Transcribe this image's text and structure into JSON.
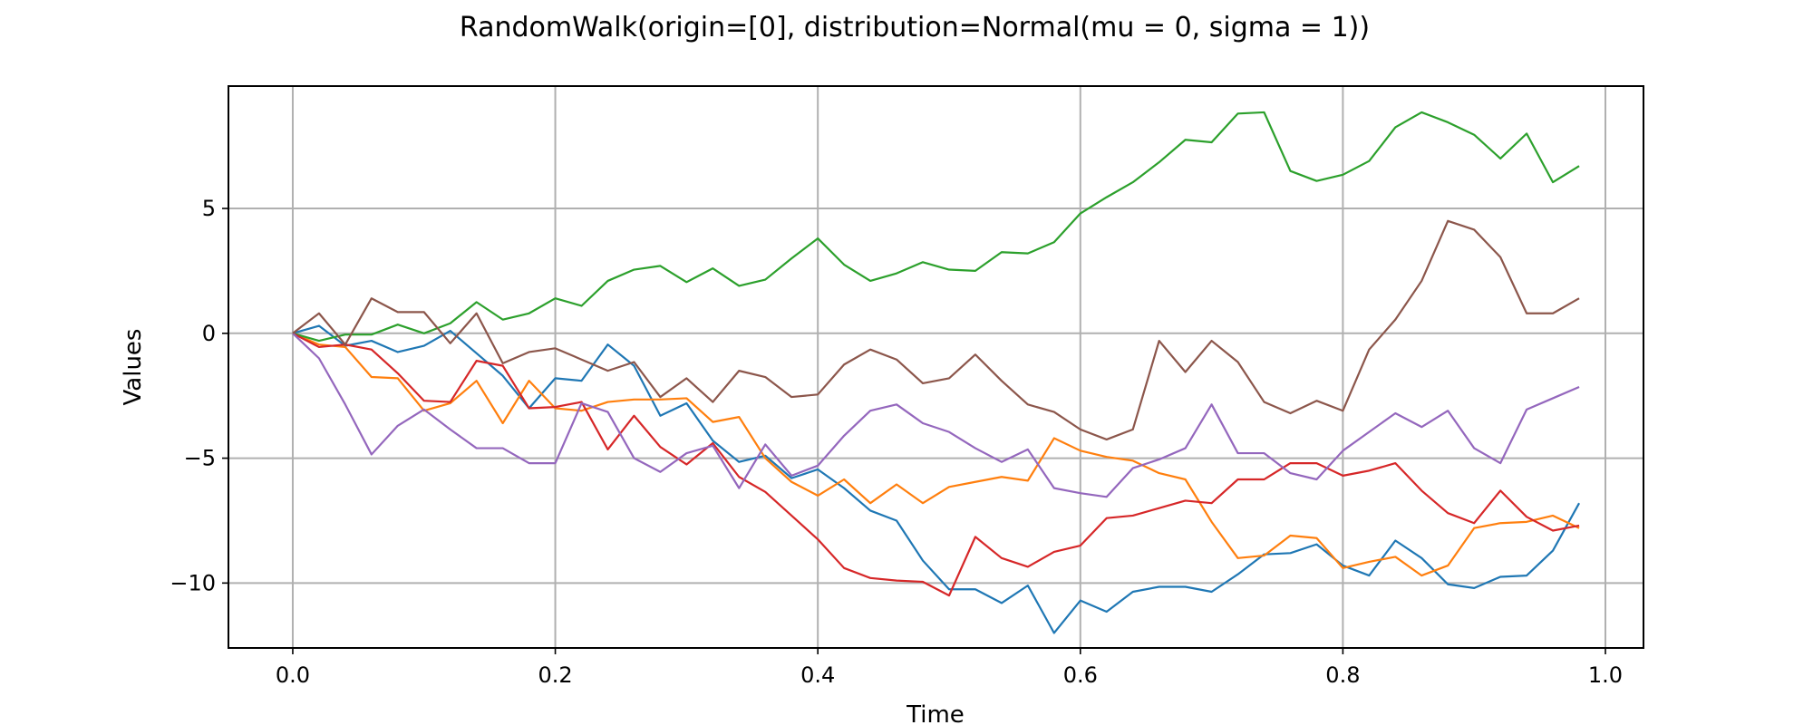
{
  "chart_data": {
    "type": "line",
    "title": "RandomWalk(origin=[0], distribution=Normal(mu = 0, sigma = 1))",
    "xlabel": "Time",
    "ylabel": "Values",
    "xlim": [
      -0.049,
      1.029
    ],
    "ylim": [
      -12.6,
      9.9
    ],
    "xticks": [
      0.0,
      0.2,
      0.4,
      0.6,
      0.8,
      1.0
    ],
    "xtick_labels": [
      "0.0",
      "0.2",
      "0.4",
      "0.6",
      "0.8",
      "1.0"
    ],
    "yticks": [
      -10,
      -5,
      0,
      5
    ],
    "ytick_labels": [
      "−10",
      "−5",
      "0",
      "5"
    ],
    "grid": true,
    "x": [
      0.0,
      0.02,
      0.04,
      0.06,
      0.08,
      0.1,
      0.12,
      0.14,
      0.16,
      0.18,
      0.2,
      0.22,
      0.24,
      0.26,
      0.28,
      0.3,
      0.32,
      0.34,
      0.36,
      0.38,
      0.4,
      0.42,
      0.44,
      0.46,
      0.48,
      0.5,
      0.52,
      0.54,
      0.56,
      0.58,
      0.6,
      0.62,
      0.64,
      0.66,
      0.68,
      0.7,
      0.72,
      0.74,
      0.76,
      0.78,
      0.8,
      0.82,
      0.84,
      0.86,
      0.88,
      0.9,
      0.92,
      0.94,
      0.96,
      0.98
    ],
    "series": [
      {
        "color": "#1f77b4",
        "values": [
          0,
          0.3,
          -0.5,
          -0.3,
          -0.75,
          -0.5,
          0.1,
          -0.8,
          -1.7,
          -3.0,
          -1.8,
          -1.9,
          -0.45,
          -1.3,
          -3.3,
          -2.8,
          -4.3,
          -5.15,
          -4.9,
          -5.8,
          -5.45,
          -6.2,
          -7.1,
          -7.5,
          -9.1,
          -10.25,
          -10.25,
          -10.8,
          -10.1,
          -12.0,
          -10.7,
          -11.15,
          -10.35,
          -10.15,
          -10.15,
          -10.35,
          -9.65,
          -8.85,
          -8.8,
          -8.45,
          -9.3,
          -9.7,
          -8.3,
          -9.0,
          -10.05,
          -10.2,
          -9.75,
          -9.7,
          -8.7,
          -6.8
        ]
      },
      {
        "color": "#ff7f0e",
        "values": [
          0,
          -0.45,
          -0.55,
          -1.75,
          -1.8,
          -3.1,
          -2.8,
          -1.9,
          -3.6,
          -1.9,
          -3.0,
          -3.1,
          -2.75,
          -2.65,
          -2.65,
          -2.6,
          -3.55,
          -3.35,
          -5.0,
          -5.95,
          -6.5,
          -5.85,
          -6.8,
          -6.05,
          -6.8,
          -6.15,
          -5.95,
          -5.75,
          -5.9,
          -4.2,
          -4.7,
          -4.95,
          -5.1,
          -5.6,
          -5.85,
          -7.55,
          -9.0,
          -8.9,
          -8.1,
          -8.2,
          -9.4,
          -9.15,
          -8.95,
          -9.7,
          -9.3,
          -7.8,
          -7.6,
          -7.55,
          -7.3,
          -7.8
        ]
      },
      {
        "color": "#2ca02c",
        "values": [
          0,
          -0.3,
          -0.05,
          -0.05,
          0.35,
          0.0,
          0.4,
          1.25,
          0.55,
          0.8,
          1.4,
          1.1,
          2.1,
          2.55,
          2.7,
          2.05,
          2.6,
          1.9,
          2.15,
          3.0,
          3.8,
          2.75,
          2.1,
          2.4,
          2.85,
          2.55,
          2.5,
          3.25,
          3.2,
          3.65,
          4.8,
          5.45,
          6.05,
          6.85,
          7.75,
          7.65,
          8.8,
          8.85,
          6.5,
          6.1,
          6.35,
          6.9,
          8.25,
          8.85,
          8.45,
          7.95,
          7.0,
          8.0,
          6.05,
          6.7
        ]
      },
      {
        "color": "#d62728",
        "values": [
          0,
          -0.55,
          -0.45,
          -0.65,
          -1.6,
          -2.7,
          -2.75,
          -1.1,
          -1.3,
          -3.0,
          -2.95,
          -2.75,
          -4.65,
          -3.3,
          -4.55,
          -5.25,
          -4.4,
          -5.75,
          -6.35,
          -7.3,
          -8.25,
          -9.4,
          -9.8,
          -9.9,
          -9.95,
          -10.5,
          -8.15,
          -9.0,
          -9.35,
          -8.75,
          -8.5,
          -7.4,
          -7.3,
          -7.0,
          -6.7,
          -6.8,
          -5.85,
          -5.85,
          -5.2,
          -5.2,
          -5.7,
          -5.5,
          -5.2,
          -6.3,
          -7.2,
          -7.6,
          -6.3,
          -7.35,
          -7.9,
          -7.7
        ]
      },
      {
        "color": "#9467bd",
        "values": [
          0,
          -1.0,
          -2.85,
          -4.85,
          -3.7,
          -3.05,
          -3.85,
          -4.6,
          -4.6,
          -5.2,
          -5.2,
          -2.8,
          -3.15,
          -5.0,
          -5.55,
          -4.8,
          -4.5,
          -6.2,
          -4.45,
          -5.7,
          -5.3,
          -4.1,
          -3.1,
          -2.85,
          -3.6,
          -3.95,
          -4.6,
          -5.15,
          -4.65,
          -6.2,
          -6.4,
          -6.55,
          -5.4,
          -5.05,
          -4.6,
          -2.85,
          -4.8,
          -4.8,
          -5.6,
          -5.85,
          -4.7,
          -3.95,
          -3.2,
          -3.75,
          -3.1,
          -4.6,
          -5.2,
          -3.05,
          -2.6,
          -2.15
        ]
      },
      {
        "color": "#8c564b",
        "values": [
          0,
          0.8,
          -0.45,
          1.4,
          0.85,
          0.85,
          -0.4,
          0.8,
          -1.2,
          -0.75,
          -0.6,
          -1.05,
          -1.5,
          -1.15,
          -2.55,
          -1.8,
          -2.75,
          -1.5,
          -1.75,
          -2.55,
          -2.45,
          -1.25,
          -0.65,
          -1.05,
          -2.0,
          -1.8,
          -0.85,
          -1.9,
          -2.85,
          -3.15,
          -3.85,
          -4.25,
          -3.85,
          -0.3,
          -1.55,
          -0.3,
          -1.15,
          -2.75,
          -3.2,
          -2.7,
          -3.1,
          -0.65,
          0.55,
          2.1,
          4.5,
          4.15,
          3.05,
          0.8,
          0.8,
          1.4
        ]
      }
    ]
  }
}
